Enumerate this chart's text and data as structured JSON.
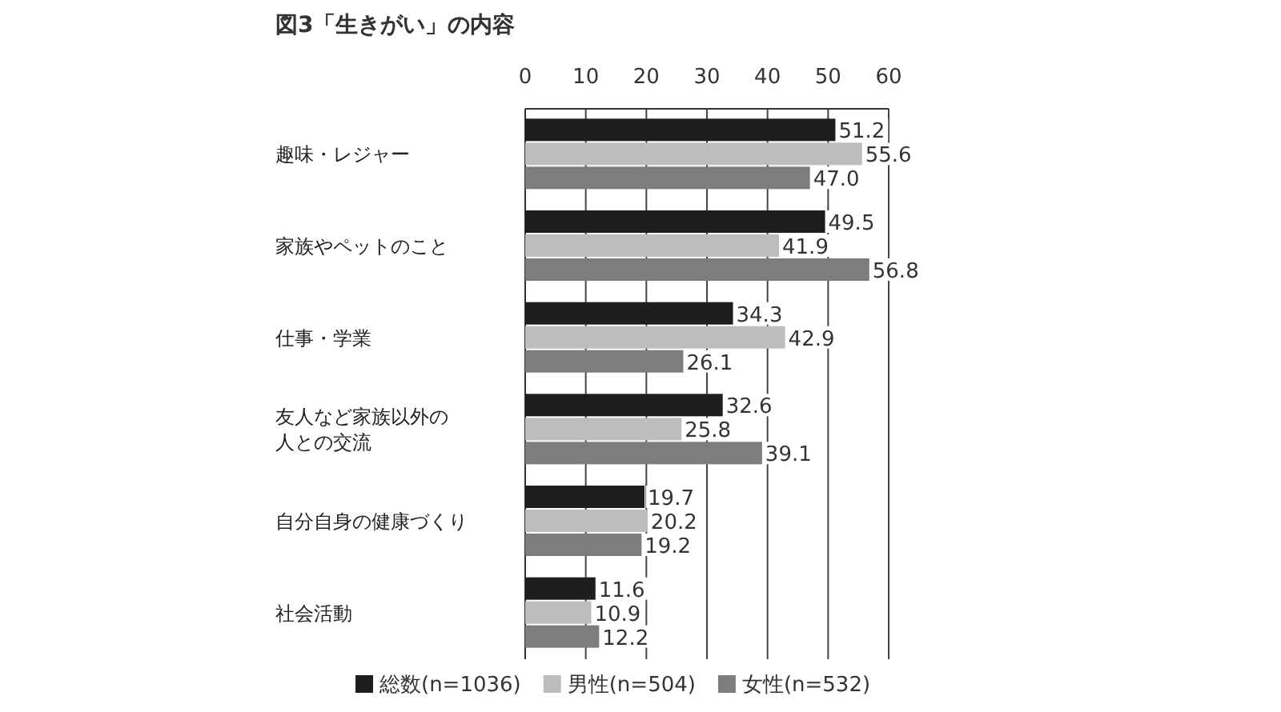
{
  "chart_data": {
    "type": "bar",
    "orientation": "horizontal",
    "title": "図3「生きがい」の内容",
    "categories": [
      "趣味・レジャー",
      "家族やペットのこと",
      "仕事・学業",
      "友人など家族以外の人との交流",
      "自分自身の健康づくり",
      "社会活動"
    ],
    "series": [
      {
        "name": "総数(n=1036)",
        "color": "#1e1e1e",
        "values": [
          51.2,
          49.5,
          34.3,
          32.6,
          19.7,
          11.6
        ],
        "value_labels": [
          "51.2",
          "49.5",
          "34.3",
          "32.6",
          "19.7",
          "11.6"
        ]
      },
      {
        "name": "男性(n=504)",
        "color": "#bdbdbd",
        "values": [
          55.6,
          41.9,
          42.9,
          25.8,
          20.2,
          10.9
        ],
        "value_labels": [
          "55.6",
          "41.9",
          "42.9",
          "25.8",
          "20.2",
          "10.9"
        ]
      },
      {
        "name": "女性(n=532)",
        "color": "#7d7d7d",
        "values": [
          47.0,
          56.8,
          26.1,
          39.1,
          19.2,
          12.2
        ],
        "value_labels": [
          "47.0",
          "56.8",
          "26.1",
          "39.1",
          "19.2",
          "12.2"
        ]
      }
    ],
    "xlim": [
      0,
      60
    ],
    "xticks": [
      0,
      10,
      20,
      30,
      40,
      50,
      60
    ],
    "grid": "x",
    "legend": "bottom"
  }
}
